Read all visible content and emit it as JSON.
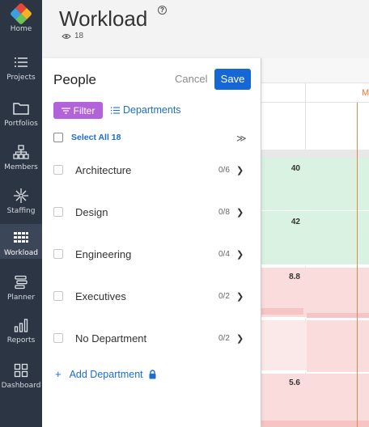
{
  "nav": {
    "items": [
      {
        "label": "Home",
        "icon": "logo-icon"
      },
      {
        "label": "Projects",
        "icon": "list-icon"
      },
      {
        "label": "Portfolios",
        "icon": "folder-icon"
      },
      {
        "label": "Members",
        "icon": "org-chart-icon"
      },
      {
        "label": "Staffing",
        "icon": "staffing-icon"
      },
      {
        "label": "Workload",
        "icon": "workload-grid-icon"
      },
      {
        "label": "Planner",
        "icon": "planner-icon"
      },
      {
        "label": "Reports",
        "icon": "bar-chart-icon"
      },
      {
        "label": "Dashboard",
        "icon": "dashboard-icon"
      }
    ],
    "active": "Workload"
  },
  "header": {
    "title": "Workload",
    "help": "?",
    "watchers": "18"
  },
  "panel": {
    "title": "People",
    "cancel_label": "Cancel",
    "save_label": "Save",
    "filter_label": "Filter",
    "departments_label": "Departments",
    "select_all_label": "Select All 18",
    "collapse_glyph": "≫",
    "departments": [
      {
        "name": "Architecture",
        "count": "0/6"
      },
      {
        "name": "Design",
        "count": "0/8"
      },
      {
        "name": "Engineering",
        "count": "0/4"
      },
      {
        "name": "Executives",
        "count": "0/2"
      },
      {
        "name": "No Department",
        "count": "0/2"
      }
    ],
    "add_department_label": "Add Department"
  },
  "grid": {
    "month_letter": "M",
    "rows": [
      {
        "value": "40",
        "status": "green"
      },
      {
        "value": "42",
        "status": "green"
      },
      {
        "value": "8.8",
        "status": "red"
      },
      {
        "value": "",
        "status": "light-red"
      },
      {
        "value": "5.6",
        "status": "red"
      }
    ]
  },
  "colors": {
    "nav_bg": "#2b3544",
    "accent_blue": "#1667d6",
    "filter_purple": "#b163d9",
    "today_line": "#e9864a",
    "green_cell": "#d9f2e2",
    "red_cell": "#fbdcdc"
  }
}
